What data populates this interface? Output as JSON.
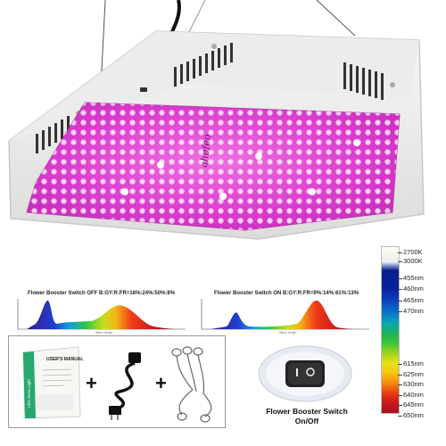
{
  "lamp": {
    "brand_mark": "ahefeo"
  },
  "spectrum_off": {
    "title": "Flower Booster Switch OFF B:GY:R:FR=16%:24%:50%:8%",
    "xcaption": "Wave length"
  },
  "spectrum_on": {
    "title": "Flower Booster Switch ON B:GY:R:FR=9%:14%:61%:13%",
    "xcaption": "Wave length"
  },
  "wavelength_legend": {
    "labels": [
      "2700K",
      "3000K",
      "455nm",
      "460nm",
      "465nm",
      "470nm",
      "615nm",
      "625nm",
      "630nm",
      "640nm",
      "645nm",
      "650nm"
    ]
  },
  "accessories": {
    "manual_title": "USER'S MANUAL",
    "manual_cover_text": "LED Grow Light",
    "plus_sign": "+"
  },
  "switch": {
    "caption_line1": "Flower Booster Switch",
    "caption_line2": "On/Off"
  }
}
